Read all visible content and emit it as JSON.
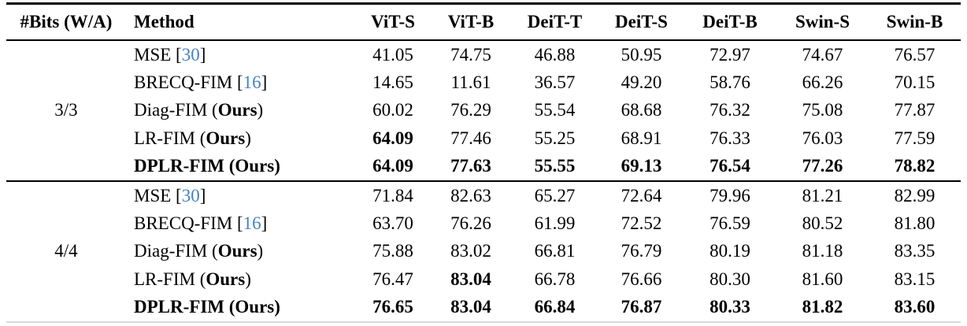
{
  "table": {
    "header": {
      "bits_label": "#Bits (W/A)",
      "method_label": "Method",
      "model_columns": [
        "ViT-S",
        "ViT-B",
        "DeiT-T",
        "DeiT-S",
        "DeiT-B",
        "Swin-S",
        "Swin-B"
      ]
    },
    "groups": [
      {
        "bits": "3/3",
        "rows": [
          {
            "method": "MSE",
            "cite": "30",
            "ours": false,
            "method_bold": false,
            "values": [
              "41.05",
              "74.75",
              "46.88",
              "50.95",
              "72.97",
              "74.67",
              "76.57"
            ],
            "bold": [
              false,
              false,
              false,
              false,
              false,
              false,
              false
            ]
          },
          {
            "method": "BRECQ-FIM",
            "cite": "16",
            "ours": false,
            "method_bold": false,
            "values": [
              "14.65",
              "11.61",
              "36.57",
              "49.20",
              "58.76",
              "66.26",
              "70.15"
            ],
            "bold": [
              false,
              false,
              false,
              false,
              false,
              false,
              false
            ]
          },
          {
            "method": "Diag-FIM",
            "cite": null,
            "ours": true,
            "method_bold": false,
            "values": [
              "60.02",
              "76.29",
              "55.54",
              "68.68",
              "76.32",
              "75.08",
              "77.87"
            ],
            "bold": [
              false,
              false,
              false,
              false,
              false,
              false,
              false
            ]
          },
          {
            "method": "LR-FIM",
            "cite": null,
            "ours": true,
            "method_bold": false,
            "values": [
              "64.09",
              "77.46",
              "55.25",
              "68.91",
              "76.33",
              "76.03",
              "77.59"
            ],
            "bold": [
              true,
              false,
              false,
              false,
              false,
              false,
              false
            ]
          },
          {
            "method": "DPLR-FIM",
            "cite": null,
            "ours": true,
            "method_bold": true,
            "values": [
              "64.09",
              "77.63",
              "55.55",
              "69.13",
              "76.54",
              "77.26",
              "78.82"
            ],
            "bold": [
              true,
              true,
              true,
              true,
              true,
              true,
              true
            ]
          }
        ]
      },
      {
        "bits": "4/4",
        "rows": [
          {
            "method": "MSE",
            "cite": "30",
            "ours": false,
            "method_bold": false,
            "values": [
              "71.84",
              "82.63",
              "65.27",
              "72.64",
              "79.96",
              "81.21",
              "82.99"
            ],
            "bold": [
              false,
              false,
              false,
              false,
              false,
              false,
              false
            ]
          },
          {
            "method": "BRECQ-FIM",
            "cite": "16",
            "ours": false,
            "method_bold": false,
            "values": [
              "63.70",
              "76.26",
              "61.99",
              "72.52",
              "76.59",
              "80.52",
              "81.80"
            ],
            "bold": [
              false,
              false,
              false,
              false,
              false,
              false,
              false
            ]
          },
          {
            "method": "Diag-FIM",
            "cite": null,
            "ours": true,
            "method_bold": false,
            "values": [
              "75.88",
              "83.02",
              "66.81",
              "76.79",
              "80.19",
              "81.18",
              "83.35"
            ],
            "bold": [
              false,
              false,
              false,
              false,
              false,
              false,
              false
            ]
          },
          {
            "method": "LR-FIM",
            "cite": null,
            "ours": true,
            "method_bold": false,
            "values": [
              "76.47",
              "83.04",
              "66.78",
              "76.66",
              "80.30",
              "81.60",
              "83.15"
            ],
            "bold": [
              false,
              true,
              false,
              false,
              false,
              false,
              false
            ]
          },
          {
            "method": "DPLR-FIM",
            "cite": null,
            "ours": true,
            "method_bold": true,
            "values": [
              "76.65",
              "83.04",
              "66.84",
              "76.87",
              "80.33",
              "81.82",
              "83.60"
            ],
            "bold": [
              true,
              true,
              true,
              true,
              true,
              true,
              true
            ]
          }
        ]
      }
    ],
    "ours_label": "Ours"
  },
  "colors": {
    "citation_blue": "#4383c4",
    "rule_black": "#000000",
    "bottom_rule_gray": "#d9d9d9",
    "background": "#ffffff"
  }
}
